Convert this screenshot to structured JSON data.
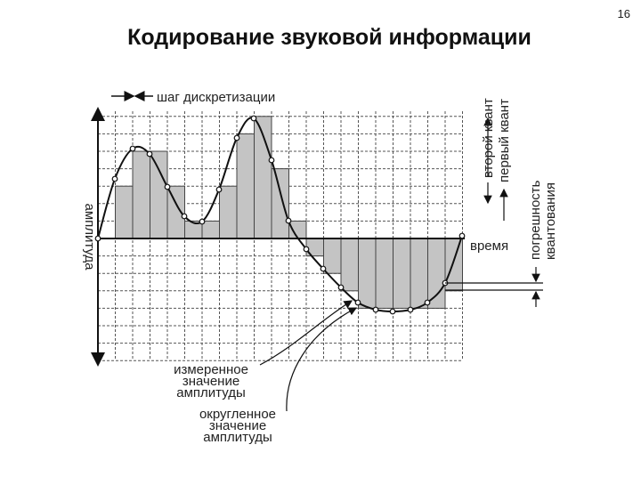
{
  "page_number": "16",
  "title": "Кодирование звуковой информации",
  "labels": {
    "sampling_step": "шаг дискретизации",
    "amplitude_axis": "амплитуда",
    "time_axis": "время",
    "second_quantum": "второй квант",
    "first_quantum": "первый квант",
    "quantization_error": [
      "погрешность",
      "квантования"
    ],
    "measured_value": [
      "измеренное",
      "значение",
      "амплитуды"
    ],
    "rounded_value": [
      "округленное",
      "значение",
      "амплитуды"
    ]
  }
}
